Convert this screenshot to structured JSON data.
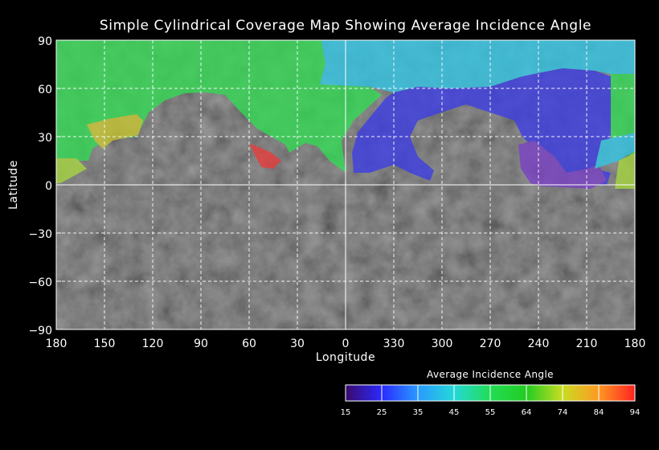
{
  "map": {
    "title": "Simple Cylindrical Coverage Map Showing Average Incidence Angle",
    "xlabel": "Longitude",
    "ylabel": "Latitude",
    "x_tick_labels": [
      "180",
      "150",
      "120",
      "90",
      "60",
      "30",
      "0",
      "330",
      "300",
      "270",
      "240",
      "210",
      "180"
    ],
    "y_tick_labels": [
      "90",
      "60",
      "30",
      "0",
      "−30",
      "−60",
      "−90"
    ],
    "projection": "simple cylindrical",
    "grid": "dashed white lines every 30 degrees"
  },
  "colorbar": {
    "title": "Average Incidence Angle",
    "tick_labels": [
      "15",
      "25",
      "35",
      "45",
      "55",
      "64",
      "74",
      "84",
      "94"
    ],
    "colors": [
      "#3a0a6a",
      "#2a2aff",
      "#2a9aff",
      "#25d8d8",
      "#22dd55",
      "#22cc22",
      "#c8dd22",
      "#ff9922",
      "#ff2222"
    ]
  },
  "legend_colors": {
    "green": "#33dd55",
    "cyan": "#33c8e8",
    "blue": "#3c3ce6",
    "purple": "#7a40c8",
    "yellow": "#c8c832",
    "yellowgreen": "#a8d840",
    "red": "#e83c3c",
    "ground": "#4a4a4a"
  }
}
